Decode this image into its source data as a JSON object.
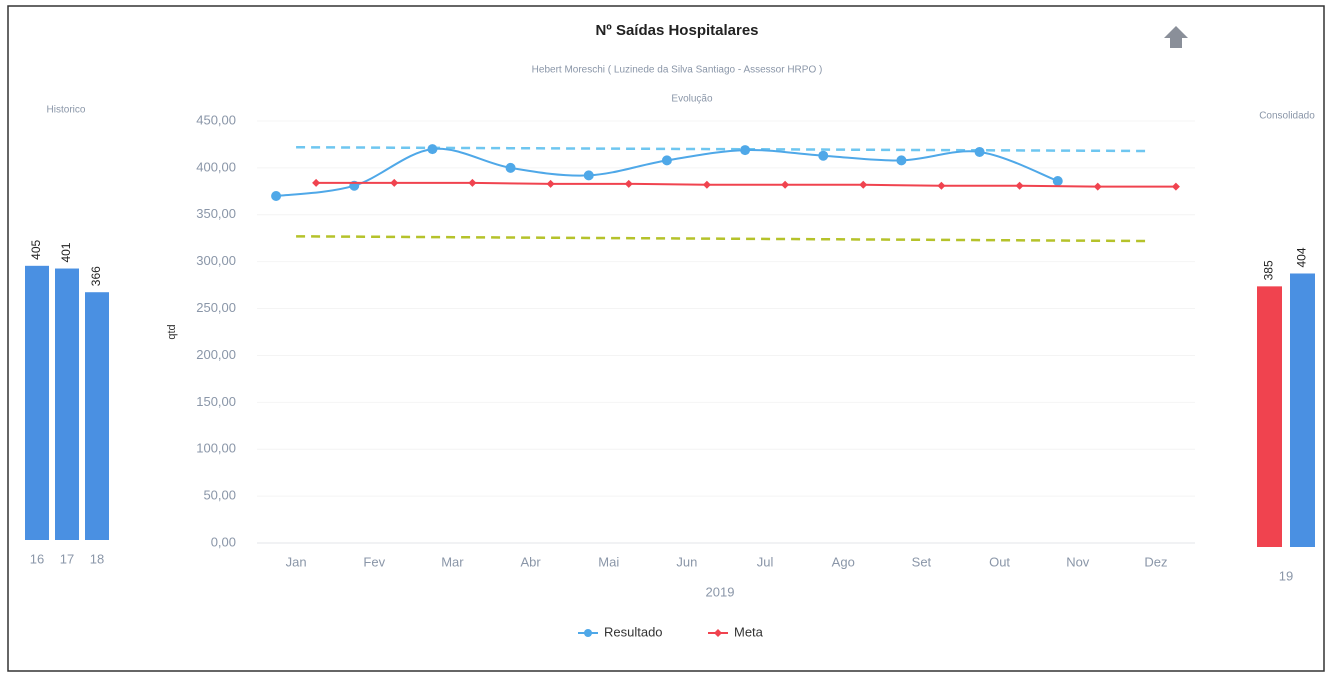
{
  "chart_data": [
    {
      "type": "line",
      "title": "Nº Saídas Hospitalares",
      "subtitle": "Hebert Moreschi ( Luzinede da Silva Santiago - Assessor HRPO )",
      "caption": "Evolução",
      "y_label": "qtd",
      "x_label": "2019",
      "categories": [
        "Jan",
        "Fev",
        "Mar",
        "Abr",
        "Mai",
        "Jun",
        "Jul",
        "Ago",
        "Set",
        "Out",
        "Nov",
        "Dez"
      ],
      "series": [
        {
          "name": "Resultado",
          "color": "#4fa8e8",
          "values": [
            370,
            381,
            420,
            400,
            392,
            408,
            419,
            413,
            408,
            417,
            386,
            null
          ]
        },
        {
          "name": "Meta",
          "color": "#f0434f",
          "values": [
            384,
            384,
            384,
            383,
            383,
            382,
            382,
            382,
            381,
            381,
            380,
            380
          ]
        }
      ],
      "reference_lines": [
        {
          "color": "#6ec6f0",
          "values": [
            422,
            418
          ]
        },
        {
          "color": "#b5c22a",
          "values": [
            327,
            322
          ]
        }
      ],
      "ylim": [
        0,
        450
      ],
      "yticks": [
        {
          "value": 0,
          "label": "0,00"
        },
        {
          "value": 50,
          "label": "50,00"
        },
        {
          "value": 100,
          "label": "100,00"
        },
        {
          "value": 150,
          "label": "150,00"
        },
        {
          "value": 200,
          "label": "200,00"
        },
        {
          "value": 250,
          "label": "250,00"
        },
        {
          "value": 300,
          "label": "300,00"
        },
        {
          "value": 350,
          "label": "350,00"
        },
        {
          "value": 400,
          "label": "400,00"
        },
        {
          "value": 450,
          "label": "450,00"
        }
      ],
      "grid": true
    },
    {
      "type": "bar",
      "title": "Historico",
      "categories": [
        "16",
        "17",
        "18"
      ],
      "values": [
        405,
        401,
        366
      ],
      "color": "#4a90e2"
    },
    {
      "type": "bar",
      "title": "Consolidado",
      "categories": [
        "19"
      ],
      "series": [
        {
          "color": "#f0434f",
          "values": [
            385
          ]
        },
        {
          "color": "#4a90e2",
          "values": [
            404
          ]
        }
      ]
    }
  ]
}
